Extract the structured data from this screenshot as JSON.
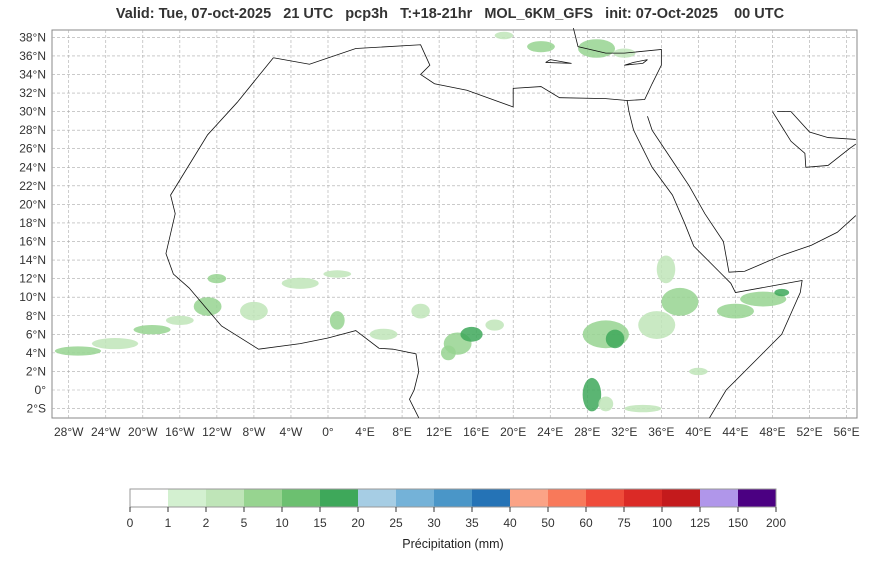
{
  "title": "Valid: Tue, 07-oct-2025   21 UTC   pcp3h   T:+18-21hr   MOL_6KM_GFS   init: 07-Oct-2025    00 UTC",
  "lat_labels": [
    "38°N",
    "36°N",
    "34°N",
    "32°N",
    "30°N",
    "28°N",
    "26°N",
    "24°N",
    "22°N",
    "20°N",
    "18°N",
    "16°N",
    "14°N",
    "12°N",
    "10°N",
    "8°N",
    "6°N",
    "4°N",
    "2°N",
    "0°",
    "2°S"
  ],
  "lat_values": [
    38,
    36,
    34,
    32,
    30,
    28,
    26,
    24,
    22,
    20,
    18,
    16,
    14,
    12,
    10,
    8,
    6,
    4,
    2,
    0,
    -2
  ],
  "lon_labels": [
    "28°W",
    "24°W",
    "20°W",
    "16°W",
    "12°W",
    "8°W",
    "4°W",
    "0°",
    "4°E",
    "8°E",
    "12°E",
    "16°E",
    "20°E",
    "24°E",
    "28°E",
    "32°E",
    "36°E",
    "40°E",
    "44°E",
    "48°E",
    "52°E",
    "56°E"
  ],
  "lon_values": [
    -28,
    -24,
    -20,
    -16,
    -12,
    -8,
    -4,
    0,
    4,
    8,
    12,
    16,
    20,
    24,
    28,
    32,
    36,
    40,
    44,
    48,
    52,
    56
  ],
  "colorbar": {
    "label": "Précipitation (mm)",
    "ticks": [
      "0",
      "1",
      "2",
      "5",
      "10",
      "15",
      "20",
      "25",
      "30",
      "35",
      "40",
      "50",
      "60",
      "75",
      "100",
      "125",
      "150",
      "200"
    ],
    "colors": [
      "#ffffff",
      "#d3f0d0",
      "#bfe5b8",
      "#97d490",
      "#6cc070",
      "#3ea85a",
      "#a6cde4",
      "#74b2d8",
      "#4a96c8",
      "#2573b6",
      "#fba386",
      "#f8795a",
      "#ef4b3a",
      "#db2a26",
      "#c41a1c",
      "#b096ea",
      "#4b0082"
    ]
  },
  "precip_color_light": "#bfe5b8",
  "precip_color_mid": "#97d490",
  "precip_color_dark": "#3ea85a"
}
